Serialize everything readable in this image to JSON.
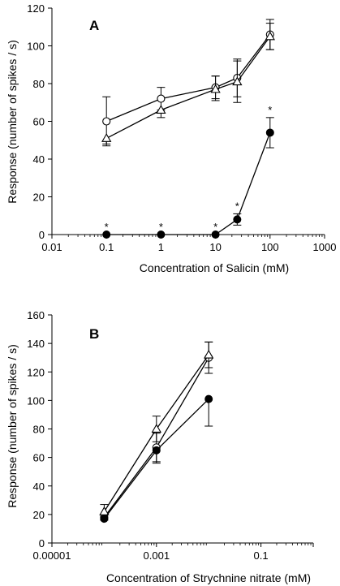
{
  "chart_data": [
    {
      "type": "line",
      "panel_label": "A",
      "xlabel": "Concentration of Salicin (mM)",
      "ylabel": "Response (number of spikes / s)",
      "xscale": "log",
      "xlim": [
        0.01,
        1000
      ],
      "ylim": [
        0,
        120
      ],
      "xticks": [
        0.01,
        0.1,
        1,
        10,
        100,
        1000
      ],
      "xtick_labels": [
        "0.01",
        "0.1",
        "1",
        "10",
        "100",
        "1000"
      ],
      "yticks": [
        0,
        20,
        40,
        60,
        80,
        100,
        120
      ],
      "ytick_labels": [
        "0",
        "20",
        "40",
        "60",
        "80",
        "100",
        "120"
      ],
      "grid": false,
      "series": [
        {
          "marker": "open-circle",
          "x": [
            0.1,
            1,
            10,
            25,
            100
          ],
          "y": [
            60,
            72,
            78,
            83,
            106
          ],
          "err_up": [
            13,
            6,
            6,
            10,
            8
          ],
          "err_down": [
            13,
            6,
            6,
            10,
            8
          ]
        },
        {
          "marker": "open-triangle",
          "x": [
            0.1,
            1,
            10,
            25,
            100
          ],
          "y": [
            51,
            66,
            77,
            81,
            105
          ],
          "err_up": [
            0,
            0,
            7,
            11,
            7
          ],
          "err_down": [
            3,
            4,
            6,
            11,
            7
          ]
        },
        {
          "marker": "filled-circle",
          "x": [
            0.1,
            1,
            10,
            25,
            100
          ],
          "y": [
            0,
            0,
            0,
            8,
            54
          ],
          "err_up": [
            0,
            0,
            0,
            3,
            8
          ],
          "err_down": [
            0,
            0,
            0,
            3,
            8
          ]
        }
      ],
      "annotations": [
        {
          "text": "*",
          "x": 0.1,
          "y": 0
        },
        {
          "text": "*",
          "x": 1,
          "y": 0
        },
        {
          "text": "*",
          "x": 10,
          "y": 0
        },
        {
          "text": "*",
          "x": 25,
          "y": 8
        },
        {
          "text": "*",
          "x": 100,
          "y": 54
        }
      ]
    },
    {
      "type": "line",
      "panel_label": "B",
      "xlabel": "Concentration of Strychnine nitrate (mM)",
      "ylabel": "Response (number of spikes / s)",
      "xscale": "log",
      "xlim": [
        1e-05,
        1
      ],
      "ylim": [
        0,
        160
      ],
      "xticks": [
        1e-05,
        0.001,
        0.1
      ],
      "xtick_labels": [
        "0.00001",
        "0.001",
        "0.1"
      ],
      "yticks": [
        0,
        20,
        40,
        60,
        80,
        100,
        120,
        140,
        160
      ],
      "ytick_labels": [
        "0",
        "20",
        "40",
        "60",
        "80",
        "100",
        "120",
        "140",
        "160"
      ],
      "grid": false,
      "series": [
        {
          "marker": "open-circle",
          "x": [
            0.0001,
            0.001,
            0.01
          ],
          "y": [
            18,
            67,
            130
          ],
          "err_up": [
            2,
            10,
            11
          ],
          "err_down": [
            2,
            10,
            11
          ]
        },
        {
          "marker": "open-triangle",
          "x": [
            0.0001,
            0.001,
            0.01
          ],
          "y": [
            22,
            80,
            132
          ],
          "err_up": [
            5,
            9,
            9
          ],
          "err_down": [
            5,
            9,
            9
          ]
        },
        {
          "marker": "filled-circle",
          "x": [
            0.0001,
            0.001,
            0.01
          ],
          "y": [
            17,
            65,
            101
          ],
          "err_up": [
            0,
            0,
            0
          ],
          "err_down": [
            0,
            9,
            19
          ]
        }
      ],
      "annotations": []
    }
  ]
}
